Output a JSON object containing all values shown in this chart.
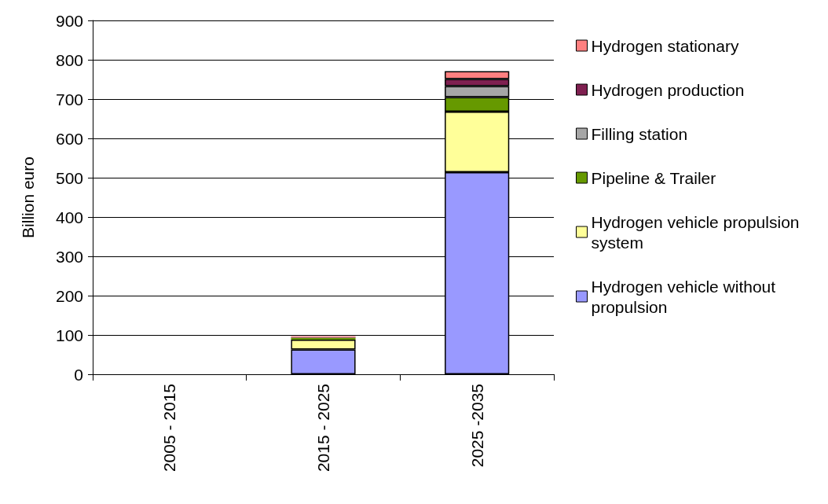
{
  "chart_data": {
    "type": "bar",
    "stacked": true,
    "ylabel": "Billion euro",
    "categories": [
      "2005 - 2015",
      "2015 - 2025",
      "2025 -2035"
    ],
    "series": [
      {
        "name": "Hydrogen vehicle without propulsion",
        "color": "#9999ff",
        "values": [
          0,
          63,
          514
        ]
      },
      {
        "name": "Hydrogen vehicle propulsion system",
        "color": "#ffff99",
        "values": [
          0,
          25,
          154
        ]
      },
      {
        "name": "Pipeline & Trailer",
        "color": "#669900",
        "values": [
          0,
          5,
          37
        ]
      },
      {
        "name": "Filling station",
        "color": "#a6a6a6",
        "values": [
          0,
          null,
          28
        ]
      },
      {
        "name": "Hydrogen production",
        "color": "#7f2050",
        "values": [
          0,
          2,
          18
        ]
      },
      {
        "name": "Hydrogen stationary",
        "color": "#ff8080",
        "values": [
          0,
          2,
          20
        ]
      }
    ],
    "ylim": [
      0,
      900
    ],
    "yticks": [
      0,
      100,
      200,
      300,
      400,
      500,
      600,
      700,
      800,
      900
    ],
    "grid": "y",
    "legend": "right"
  }
}
